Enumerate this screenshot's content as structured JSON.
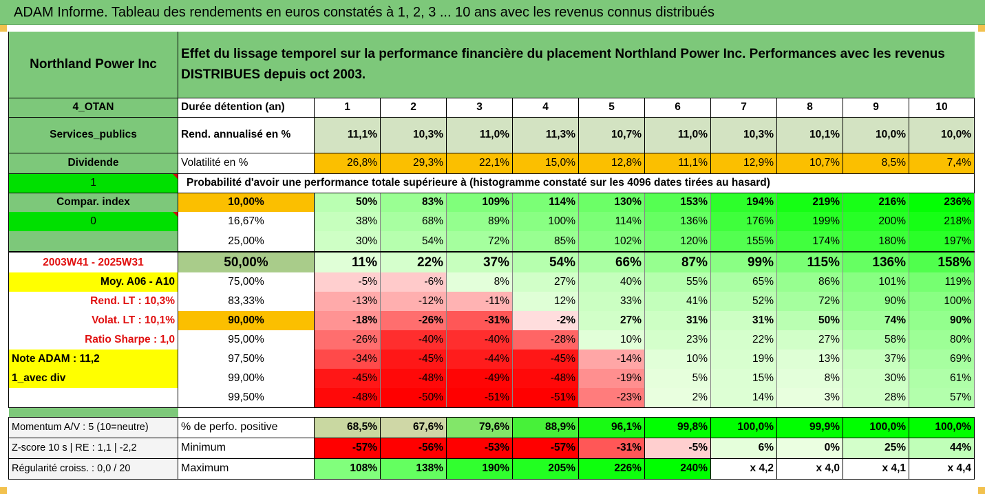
{
  "banner_title": "ADAM Informe. Tableau des rendements en euros constatés à 1, 2, 3 ... 10 ans avec les revenus connus distribués",
  "header": {
    "company": "Northland Power Inc",
    "description": "Effet du lissage temporel sur la performance financière du placement Northland Power Inc. Performances avec les revenus DISTRIBUES depuis oct 2003.",
    "code": "4_OTAN",
    "duration_label": "Durée détention (an)",
    "years": [
      "1",
      "2",
      "3",
      "4",
      "5",
      "6",
      "7",
      "8",
      "9",
      "10"
    ],
    "sector": "Services_publics",
    "rend_label": "Rend. annualisé en %",
    "rend_values": [
      "11,1%",
      "10,3%",
      "11,0%",
      "11,3%",
      "10,7%",
      "11,0%",
      "10,3%",
      "10,1%",
      "10,0%",
      "10,0%"
    ],
    "div_label": "Dividende",
    "vol_label": "Volatilité en %",
    "vol_values": [
      "26,8%",
      "29,3%",
      "22,1%",
      "15,0%",
      "12,8%",
      "11,1%",
      "12,9%",
      "10,7%",
      "8,5%",
      "7,4%"
    ],
    "prob_index": "1",
    "prob_label": "Probabilité d'avoir une performance totale supérieure à (histogramme constaté sur les 4096 dates tirées au hasard)"
  },
  "left_labels": {
    "compar": "Compar. index",
    "zero": "0",
    "empty": "",
    "period": "2003W41 - 2025W31",
    "moy": "Moy. A06 - A10",
    "rend_lt": "Rend. LT :   10,3%",
    "volat_lt": "Volat. LT :   10,1%",
    "sharpe": "Ratio Sharpe :    1,0",
    "note": "Note ADAM : 11,2",
    "avec_div": "1_avec div"
  },
  "prob_rows": [
    {
      "pct": "10,00%",
      "values": [
        "50%",
        "83%",
        "109%",
        "114%",
        "130%",
        "153%",
        "194%",
        "219%",
        "216%",
        "236%"
      ]
    },
    {
      "pct": "16,67%",
      "values": [
        "38%",
        "68%",
        "89%",
        "100%",
        "114%",
        "136%",
        "176%",
        "199%",
        "200%",
        "218%"
      ]
    },
    {
      "pct": "25,00%",
      "values": [
        "30%",
        "54%",
        "72%",
        "85%",
        "102%",
        "120%",
        "155%",
        "174%",
        "180%",
        "197%"
      ]
    },
    {
      "pct": "50,00%",
      "values": [
        "11%",
        "22%",
        "37%",
        "54%",
        "66%",
        "87%",
        "99%",
        "115%",
        "136%",
        "158%"
      ]
    },
    {
      "pct": "75,00%",
      "values": [
        "-5%",
        "-6%",
        "8%",
        "27%",
        "40%",
        "55%",
        "65%",
        "86%",
        "101%",
        "119%"
      ]
    },
    {
      "pct": "83,33%",
      "values": [
        "-13%",
        "-12%",
        "-11%",
        "12%",
        "33%",
        "41%",
        "52%",
        "72%",
        "90%",
        "100%"
      ]
    },
    {
      "pct": "90,00%",
      "values": [
        "-18%",
        "-26%",
        "-31%",
        "-2%",
        "27%",
        "31%",
        "31%",
        "50%",
        "74%",
        "90%"
      ]
    },
    {
      "pct": "95,00%",
      "values": [
        "-26%",
        "-40%",
        "-40%",
        "-28%",
        "10%",
        "23%",
        "22%",
        "27%",
        "58%",
        "80%"
      ]
    },
    {
      "pct": "97,50%",
      "values": [
        "-34%",
        "-45%",
        "-44%",
        "-45%",
        "-14%",
        "10%",
        "19%",
        "13%",
        "37%",
        "69%"
      ]
    },
    {
      "pct": "99,00%",
      "values": [
        "-45%",
        "-48%",
        "-49%",
        "-48%",
        "-19%",
        "5%",
        "15%",
        "8%",
        "30%",
        "61%"
      ]
    },
    {
      "pct": "99,50%",
      "values": [
        "-48%",
        "-50%",
        "-51%",
        "-51%",
        "-23%",
        "2%",
        "14%",
        "3%",
        "28%",
        "57%"
      ]
    }
  ],
  "footer": {
    "momentum": "Momentum A/V : 5 (10=neutre)",
    "positive_label": "% de perfo. positive",
    "positive_values": [
      "68,5%",
      "67,6%",
      "79,6%",
      "88,9%",
      "96,1%",
      "99,8%",
      "100,0%",
      "99,9%",
      "100,0%",
      "100,0%"
    ],
    "zscore": "Z-score 10 s  |  RE : 1,1  |  -2,2",
    "min_label": "Minimum",
    "min_values": [
      "-57%",
      "-56%",
      "-53%",
      "-57%",
      "-31%",
      "-5%",
      "6%",
      "0%",
      "25%",
      "44%"
    ],
    "regul": "Régularité croiss. : 0,0 / 20",
    "max_label": "Maximum",
    "max_values": [
      "108%",
      "138%",
      "190%",
      "205%",
      "226%",
      "240%",
      "x 4,2",
      "x 4,0",
      "x 4,1",
      "x 4,4"
    ]
  },
  "colors": {
    "header_green": "#7dc87a",
    "light_green": "#c4dfb2",
    "orange": "#fbbf00",
    "lime": "#00e000",
    "yellow": "#ffff00",
    "red_text": "#e01010"
  }
}
